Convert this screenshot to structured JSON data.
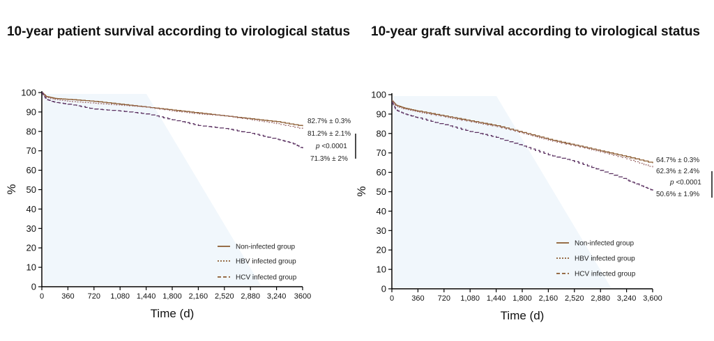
{
  "chart_data": [
    {
      "type": "line",
      "title": "10-year patient survival according to virological status",
      "xlabel": "Time (d)",
      "ylabel": "%",
      "xlim": [
        0,
        3600
      ],
      "ylim": [
        0,
        100
      ],
      "xticks": [
        "0",
        "360",
        "720",
        "1,080",
        "1,440",
        "1,800",
        "2,160",
        "2,520",
        "2,880",
        "3,240",
        "3600"
      ],
      "yticks": [
        "0",
        "10",
        "20",
        "30",
        "40",
        "50",
        "60",
        "70",
        "80",
        "90",
        "100"
      ],
      "legend_position": "bottom-right",
      "grid": false,
      "series": [
        {
          "name": "Non-infected group",
          "color": "#8a5a2e",
          "dash": "solid",
          "x": [
            0,
            60,
            180,
            360,
            720,
            1080,
            1440,
            1800,
            2160,
            2520,
            2880,
            3240,
            3600
          ],
          "y": [
            100,
            98,
            97,
            96.5,
            95.5,
            94,
            92.5,
            91,
            89.5,
            88,
            86.5,
            85,
            82.7
          ]
        },
        {
          "name": "HBV infected group",
          "color": "#a07070",
          "dash": "dotted",
          "x": [
            0,
            60,
            180,
            360,
            720,
            1080,
            1440,
            1800,
            2160,
            2520,
            2880,
            3240,
            3600
          ],
          "y": [
            100,
            97.5,
            96.5,
            95.5,
            94.5,
            93.5,
            92.5,
            90.5,
            89,
            88,
            86,
            84,
            81.2
          ]
        },
        {
          "name": "HCV infected group",
          "color": "#5a3060",
          "dash": "dashed",
          "x": [
            0,
            60,
            180,
            360,
            720,
            1080,
            1440,
            1800,
            2160,
            2520,
            2880,
            3240,
            3450,
            3600
          ],
          "y": [
            100,
            96.5,
            95,
            94,
            91.5,
            90.5,
            89,
            86,
            83,
            81.5,
            79,
            76,
            74,
            71.3
          ]
        }
      ],
      "annotations": {
        "non_infected": "82.7% ± 0.3%",
        "hbv": "81.2% ± 2.1%",
        "p_italic": "p",
        "p_value": " <0.0001",
        "hcv": "71.3% ± 2%"
      }
    },
    {
      "type": "line",
      "title": "10-year graft survival according to virological status",
      "xlabel": "Time (d)",
      "ylabel": "%",
      "xlim": [
        0,
        3600
      ],
      "ylim": [
        0,
        100
      ],
      "xticks": [
        "0",
        "360",
        "720",
        "1,080",
        "1,440",
        "1,800",
        "2,160",
        "2,520",
        "2,880",
        "3,240",
        "3,600"
      ],
      "yticks": [
        "0",
        "10",
        "20",
        "30",
        "40",
        "50",
        "60",
        "70",
        "80",
        "90",
        "100"
      ],
      "legend_position": "bottom-right",
      "grid": false,
      "series": [
        {
          "name": "Non-infected group",
          "color": "#8a5a2e",
          "dash": "solid",
          "x": [
            0,
            60,
            180,
            360,
            720,
            1080,
            1440,
            1800,
            2160,
            2520,
            2880,
            3240,
            3600
          ],
          "y": [
            97,
            94.5,
            93,
            91.5,
            89,
            86.5,
            84,
            80.5,
            77,
            74,
            71,
            68,
            64.7
          ]
        },
        {
          "name": "HBV infected group",
          "color": "#a07070",
          "dash": "dotted",
          "x": [
            0,
            60,
            180,
            360,
            720,
            1080,
            1440,
            1800,
            2160,
            2520,
            2880,
            3240,
            3600
          ],
          "y": [
            97,
            94,
            92.5,
            91,
            88.5,
            86,
            83.5,
            80,
            76.5,
            73.5,
            70.5,
            67,
            62.3
          ]
        },
        {
          "name": "HCV infected group",
          "color": "#5a3060",
          "dash": "dashed",
          "x": [
            0,
            60,
            180,
            360,
            720,
            1080,
            1440,
            1800,
            2160,
            2520,
            2880,
            3240,
            3450,
            3600
          ],
          "y": [
            96,
            92,
            90,
            88,
            84.5,
            81,
            78,
            73.5,
            69,
            65.5,
            61,
            56,
            53,
            50.6
          ]
        }
      ],
      "annotations": {
        "non_infected": "64.7% ± 0.3%",
        "hbv": "62.3% ± 2.4%",
        "p_italic": "p",
        "p_value": " <0.0001",
        "hcv": "50.6% ± 1.9%"
      }
    }
  ]
}
